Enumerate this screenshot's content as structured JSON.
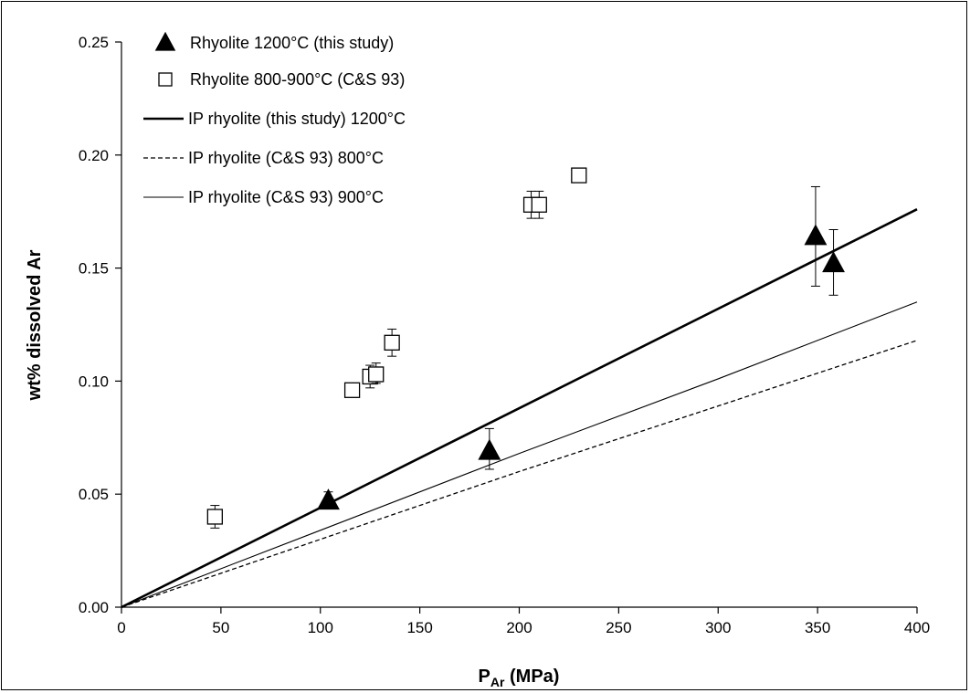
{
  "chart_data": {
    "type": "scatter",
    "title": "",
    "xlabel": "P",
    "xlabel_sub": "Ar",
    "xlabel_unit": " (MPa)",
    "ylabel": "wt% dissolved Ar",
    "xlim": [
      0,
      400
    ],
    "ylim": [
      0,
      0.25
    ],
    "x_ticks": [
      0,
      50,
      100,
      150,
      200,
      250,
      300,
      350,
      400
    ],
    "y_ticks": [
      0.0,
      0.05,
      0.1,
      0.15,
      0.2,
      0.25
    ],
    "x_tick_labels": [
      "0",
      "50",
      "100",
      "150",
      "200",
      "250",
      "300",
      "350",
      "400"
    ],
    "y_tick_labels": [
      "0.00",
      "0.05",
      "0.10",
      "0.15",
      "0.20",
      "0.25"
    ],
    "grid": false,
    "legend_position": "top-left",
    "series": [
      {
        "name": "Rhyolite 1200°C (this study)",
        "kind": "points",
        "marker": "filled-triangle",
        "points": [
          {
            "x": 104,
            "y": 0.047,
            "err_lo": 0.044,
            "err_hi": 0.051
          },
          {
            "x": 185,
            "y": 0.069,
            "err_lo": 0.061,
            "err_hi": 0.079
          },
          {
            "x": 349,
            "y": 0.164,
            "err_lo": 0.142,
            "err_hi": 0.186
          },
          {
            "x": 358,
            "y": 0.152,
            "err_lo": 0.138,
            "err_hi": 0.167
          }
        ]
      },
      {
        "name": "Rhyolite 800-900°C (C&S 93)",
        "kind": "points",
        "marker": "open-square",
        "points": [
          {
            "x": 47,
            "y": 0.04,
            "err_lo": 0.035,
            "err_hi": 0.045
          },
          {
            "x": 116,
            "y": 0.096,
            "err_lo": 0.093,
            "err_hi": 0.099
          },
          {
            "x": 125,
            "y": 0.102,
            "err_lo": 0.097,
            "err_hi": 0.107
          },
          {
            "x": 128,
            "y": 0.103,
            "err_lo": 0.099,
            "err_hi": 0.108
          },
          {
            "x": 136,
            "y": 0.117,
            "err_lo": 0.111,
            "err_hi": 0.123
          },
          {
            "x": 206,
            "y": 0.178,
            "err_lo": 0.172,
            "err_hi": 0.184
          },
          {
            "x": 210,
            "y": 0.178,
            "err_lo": 0.172,
            "err_hi": 0.184
          },
          {
            "x": 230,
            "y": 0.191,
            "err_lo": 0.191,
            "err_hi": 0.191
          }
        ]
      },
      {
        "name": "IP rhyolite (this study) 1200°C",
        "kind": "line",
        "style": "thick",
        "x": [
          0,
          400
        ],
        "y": [
          0,
          0.176
        ]
      },
      {
        "name": "IP rhyolite (C&S 93) 800°C",
        "kind": "line",
        "style": "dashed",
        "x": [
          0,
          100,
          200,
          300,
          400
        ],
        "y": [
          0,
          0.03,
          0.06,
          0.089,
          0.118
        ]
      },
      {
        "name": "IP rhyolite (C&S 93) 900°C",
        "kind": "line",
        "style": "thin",
        "x": [
          0,
          100,
          200,
          300,
          400
        ],
        "y": [
          0,
          0.034,
          0.068,
          0.101,
          0.135
        ]
      }
    ]
  }
}
